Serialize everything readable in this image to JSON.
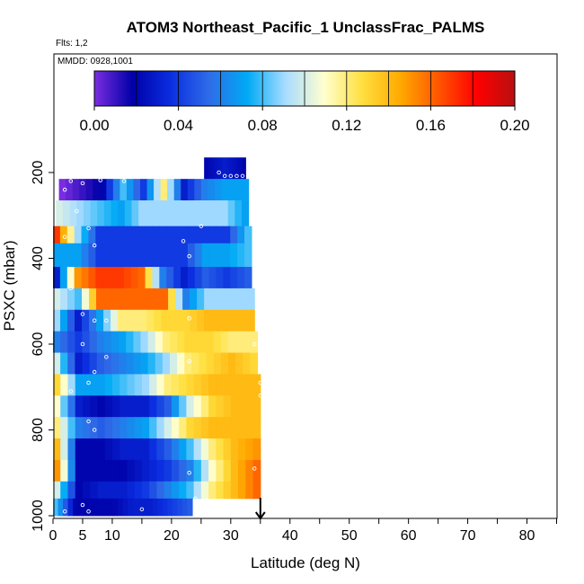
{
  "chart_data": {
    "type": "heatmap",
    "title": "ATOM3 Northeast_Pacific_1 UnclassFrac_PALMS",
    "flights_note": "Flts: 1,2",
    "date_note": "MMDD: 0928,1001",
    "xlabel": "Latitude (deg N)",
    "ylabel": "PSXC (mbar)",
    "xlim": [
      0,
      85
    ],
    "ylim": [
      1000,
      0
    ],
    "x_ticks": [
      0,
      5,
      10,
      20,
      30,
      40,
      50,
      60,
      70,
      80
    ],
    "x_tick_labels": [
      "0",
      "5",
      "10",
      "20",
      "30",
      "40",
      "50",
      "60",
      "70",
      "80"
    ],
    "y_ticks": [
      200,
      400,
      600,
      800,
      1000
    ],
    "y_tick_labels": [
      "200",
      "400",
      "600",
      "800",
      "1000"
    ],
    "grid": false,
    "colorbar": {
      "range": [
        0,
        0.2
      ],
      "ticks": [
        0,
        0.04,
        0.08,
        0.12,
        0.16,
        0.2
      ],
      "tick_labels": [
        "0.00",
        "0.04",
        "0.08",
        "0.12",
        "0.16",
        "0.20"
      ],
      "colors": [
        "#7a2de0",
        "#0000a8",
        "#0a2ee0",
        "#2f6ce8",
        "#00aaf5",
        "#a8dcff",
        "#ffffd0",
        "#ffe040",
        "#ffaa00",
        "#ff5500",
        "#ff0000",
        "#b81010"
      ]
    },
    "marker": {
      "latitude": 35,
      "pressure": 1000,
      "symbol": "down-arrow"
    },
    "bands": [
      {
        "p_top": 165,
        "p_bottom": 215,
        "lat_start": 25.5,
        "lat_end": 32.5,
        "values": [
          0.02,
          0.03,
          0.02
        ]
      },
      {
        "p_top": 215,
        "p_bottom": 265,
        "lat_start": 1,
        "lat_end": 33,
        "values": [
          0.0,
          0.01,
          0.02,
          0.08,
          0.04,
          0.12,
          0.03,
          0.06,
          0.07,
          0.07
        ]
      },
      {
        "p_top": 265,
        "p_bottom": 325,
        "lat_start": 0.5,
        "lat_end": 33,
        "values": [
          0.1,
          0.09,
          0.08,
          0.07,
          0.09,
          0.09,
          0.09,
          0.09,
          0.09,
          0.07
        ]
      },
      {
        "p_top": 325,
        "p_bottom": 365,
        "lat_start": 0,
        "lat_end": 33.5,
        "values": [
          0.17,
          0.09,
          0.04,
          0.04,
          0.04,
          0.04,
          0.04,
          0.04,
          0.04,
          0.08
        ]
      },
      {
        "p_top": 365,
        "p_bottom": 420,
        "lat_start": 0,
        "lat_end": 33.5,
        "values": [
          0.07,
          0.07,
          0.04,
          0.04,
          0.04,
          0.04,
          0.04,
          0.07,
          0.07,
          0.08
        ]
      },
      {
        "p_top": 420,
        "p_bottom": 470,
        "lat_start": 0,
        "lat_end": 33.5,
        "values": [
          0.03,
          0.15,
          0.17,
          0.17,
          0.16,
          0.06,
          0.03,
          0.05,
          0.04,
          0.05
        ]
      },
      {
        "p_top": 470,
        "p_bottom": 520,
        "lat_start": 0,
        "lat_end": 34,
        "values": [
          0.1,
          0.08,
          0.16,
          0.16,
          0.16,
          0.16,
          0.06,
          0.09,
          0.09,
          0.09
        ]
      },
      {
        "p_top": 520,
        "p_bottom": 570,
        "lat_start": 0,
        "lat_end": 34,
        "values": [
          0.09,
          0.03,
          0.07,
          0.12,
          0.12,
          0.13,
          0.13,
          0.14,
          0.14,
          0.14
        ]
      },
      {
        "p_top": 570,
        "p_bottom": 620,
        "lat_start": 0,
        "lat_end": 34.5,
        "values": [
          0.06,
          0.04,
          0.06,
          0.07,
          0.09,
          0.12,
          0.13,
          0.13,
          0.12,
          0.12
        ]
      },
      {
        "p_top": 620,
        "p_bottom": 670,
        "lat_start": 0,
        "lat_end": 34.5,
        "values": [
          0.1,
          0.03,
          0.05,
          0.06,
          0.07,
          0.09,
          0.12,
          0.13,
          0.14,
          0.13
        ]
      },
      {
        "p_top": 670,
        "p_bottom": 720,
        "lat_start": 0,
        "lat_end": 35,
        "values": [
          0.13,
          0.07,
          0.07,
          0.08,
          0.09,
          0.12,
          0.13,
          0.14,
          0.14,
          0.14
        ]
      },
      {
        "p_top": 720,
        "p_bottom": 770,
        "lat_start": 0,
        "lat_end": 35,
        "values": [
          0.11,
          0.03,
          0.02,
          0.03,
          0.03,
          0.05,
          0.1,
          0.13,
          0.14,
          0.14
        ]
      },
      {
        "p_top": 770,
        "p_bottom": 820,
        "lat_start": 0,
        "lat_end": 35,
        "values": [
          0.12,
          0.06,
          0.05,
          0.06,
          0.07,
          0.1,
          0.13,
          0.14,
          0.14,
          0.14
        ]
      },
      {
        "p_top": 820,
        "p_bottom": 870,
        "lat_start": 0,
        "lat_end": 35,
        "values": [
          0.14,
          0.02,
          0.02,
          0.03,
          0.03,
          0.05,
          0.08,
          0.12,
          0.14,
          0.15
        ]
      },
      {
        "p_top": 870,
        "p_bottom": 920,
        "lat_start": 0,
        "lat_end": 35,
        "values": [
          0.15,
          0.02,
          0.02,
          0.02,
          0.03,
          0.04,
          0.06,
          0.11,
          0.14,
          0.16
        ]
      },
      {
        "p_top": 920,
        "p_bottom": 960,
        "lat_start": 0,
        "lat_end": 35,
        "values": [
          0.1,
          0.02,
          0.03,
          0.03,
          0.04,
          0.06,
          0.08,
          0.12,
          0.14,
          0.16
        ]
      },
      {
        "p_top": 960,
        "p_bottom": 1000,
        "lat_start": 0,
        "lat_end": 23.5,
        "values": [
          0.08,
          0.02,
          0.02,
          0.02,
          0.03,
          0.03,
          0.04,
          0.05
        ]
      }
    ],
    "points": [
      [
        3,
        220
      ],
      [
        5,
        225
      ],
      [
        2,
        240
      ],
      [
        8,
        218
      ],
      [
        12,
        220
      ],
      [
        28,
        200
      ],
      [
        29,
        208
      ],
      [
        30,
        208
      ],
      [
        31,
        208
      ],
      [
        32,
        208
      ],
      [
        4,
        290
      ],
      [
        6,
        330
      ],
      [
        2,
        350
      ],
      [
        7,
        370
      ],
      [
        22,
        360
      ],
      [
        23,
        395
      ],
      [
        25,
        325
      ],
      [
        3,
        470
      ],
      [
        5,
        530
      ],
      [
        7,
        545
      ],
      [
        9,
        545
      ],
      [
        5,
        600
      ],
      [
        9,
        630
      ],
      [
        23,
        540
      ],
      [
        23,
        640
      ],
      [
        34,
        600
      ],
      [
        7,
        665
      ],
      [
        6,
        690
      ],
      [
        3,
        710
      ],
      [
        35,
        690
      ],
      [
        35,
        720
      ],
      [
        6,
        780
      ],
      [
        7,
        800
      ],
      [
        23,
        900
      ],
      [
        34,
        890
      ],
      [
        5,
        975
      ],
      [
        6,
        990
      ],
      [
        2,
        990
      ],
      [
        15,
        985
      ],
      [
        24,
        960
      ],
      [
        33,
        985
      ]
    ]
  }
}
